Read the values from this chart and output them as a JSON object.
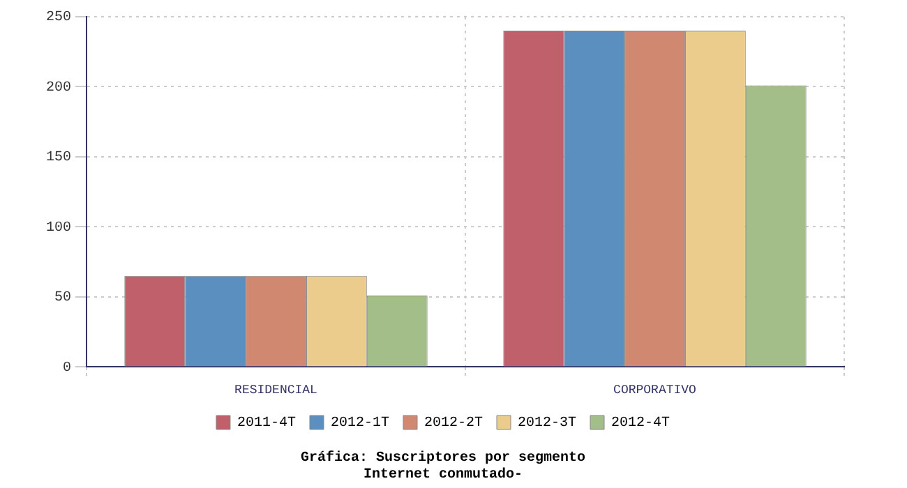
{
  "chart_data": {
    "type": "bar",
    "title": "Gráfica: Suscriptores por segmento",
    "subtitle": "Internet conmutado-",
    "categories": [
      "RESIDENCIAL",
      "CORPORATIVO"
    ],
    "series": [
      {
        "name": "2011-4T",
        "color": "#c0606a",
        "values": [
          65,
          240
        ]
      },
      {
        "name": "2012-1T",
        "color": "#5b8fc0",
        "values": [
          65,
          240
        ]
      },
      {
        "name": "2012-2T",
        "color": "#d08870",
        "values": [
          65,
          240
        ]
      },
      {
        "name": "2012-3T",
        "color": "#eccc8c",
        "values": [
          65,
          240
        ]
      },
      {
        "name": "2012-4T",
        "color": "#a4be8a",
        "values": [
          51,
          201
        ]
      }
    ],
    "ylim": [
      0,
      250
    ],
    "yticks": [
      0,
      50,
      100,
      150,
      200,
      250
    ],
    "grid": true,
    "legend": "bottom"
  }
}
